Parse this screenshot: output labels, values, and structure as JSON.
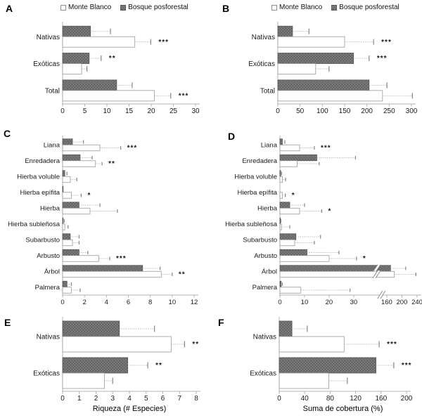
{
  "figure": {
    "legend": {
      "monte_blanco": "Monte Blanco",
      "bosque_posforestal": "Bosque posforestal"
    },
    "colors": {
      "monte_blanco_fill": "#ffffff",
      "monte_blanco_stroke": "#999999",
      "bosque_fill": "#6f6f6f",
      "bosque_stroke": "#565656",
      "error_line": "#c2c2c2",
      "error_cap": "#858585",
      "axis": "#b3b3b3",
      "text": "#1a1a1a",
      "significance": "#333333"
    }
  },
  "chart_data": [
    {
      "id": "A",
      "type": "bar",
      "orientation": "horizontal",
      "show_legend": true,
      "xlabel": "",
      "xlim": [
        0,
        30
      ],
      "x_ticks": [
        0,
        5,
        10,
        15,
        20,
        25,
        30
      ],
      "categories": [
        "Nativas",
        "Exóticas",
        "Total"
      ],
      "series": [
        {
          "name": "Monte Blanco",
          "key": "monte_blanco",
          "values": [
            16.3,
            4.3,
            20.7
          ],
          "errors": [
            3.6,
            1.2,
            3.7
          ]
        },
        {
          "name": "Bosque posforestal",
          "key": "bosque_posforestal",
          "values": [
            6.3,
            6.0,
            12.2
          ],
          "errors": [
            4.5,
            2.7,
            3.5
          ]
        }
      ],
      "significance": [
        {
          "category": "Nativas",
          "on": "monte_blanco",
          "label": "***"
        },
        {
          "category": "Exóticas",
          "on": "bosque_posforestal",
          "label": "**"
        },
        {
          "category": "Total",
          "on": "monte_blanco",
          "label": "***"
        }
      ]
    },
    {
      "id": "B",
      "type": "bar",
      "orientation": "horizontal",
      "show_legend": true,
      "xlabel": "",
      "xlim": [
        0,
        300
      ],
      "x_ticks": [
        0,
        50,
        100,
        150,
        200,
        250,
        300
      ],
      "categories": [
        "Nativas",
        "Exóticas",
        "Total"
      ],
      "series": [
        {
          "name": "Monte Blanco",
          "key": "monte_blanco",
          "values": [
            150,
            85,
            235
          ],
          "errors": [
            65,
            30,
            67
          ]
        },
        {
          "name": "Bosque posforestal",
          "key": "bosque_posforestal",
          "values": [
            33,
            170,
            205
          ],
          "errors": [
            37,
            35,
            40
          ]
        }
      ],
      "significance": [
        {
          "category": "Nativas",
          "on": "monte_blanco",
          "label": "***"
        },
        {
          "category": "Exóticas",
          "on": "bosque_posforestal",
          "label": "***"
        }
      ]
    },
    {
      "id": "C",
      "type": "bar",
      "orientation": "horizontal",
      "show_legend": false,
      "xlabel": "",
      "xlim": [
        0,
        12
      ],
      "x_ticks": [
        0,
        2,
        4,
        6,
        8,
        10,
        12
      ],
      "categories": [
        "Liana",
        "Enredadera",
        "Hierba voluble",
        "Hierba epífita",
        "Hierba",
        "Hierba subleñosa",
        "Subarbusto",
        "Arbusto",
        "Árbol",
        "Palmera"
      ],
      "series": [
        {
          "name": "Monte Blanco",
          "key": "monte_blanco",
          "values": [
            3.4,
            3.0,
            0.7,
            0.8,
            2.5,
            0.2,
            0.9,
            3.3,
            9.0,
            0.8
          ],
          "errors": [
            1.9,
            0.6,
            0.6,
            0.9,
            2.5,
            0.3,
            0.6,
            1.0,
            1.0,
            0.8
          ]
        },
        {
          "name": "Bosque posforestal",
          "key": "bosque_posforestal",
          "values": [
            0.9,
            1.6,
            0.2,
            0.05,
            1.5,
            0.05,
            0.7,
            1.5,
            7.3,
            0.4
          ],
          "errors": [
            1.0,
            1.1,
            0.2,
            0,
            1.9,
            0.1,
            0.8,
            0.8,
            1.6,
            0.4
          ]
        }
      ],
      "significance": [
        {
          "category": "Liana",
          "on": "monte_blanco",
          "label": "***"
        },
        {
          "category": "Enredadera",
          "on": "monte_blanco",
          "label": "**"
        },
        {
          "category": "Hierba epífita",
          "on": "monte_blanco",
          "label": "*"
        },
        {
          "category": "Arbusto",
          "on": "monte_blanco",
          "label": "***"
        },
        {
          "category": "Árbol",
          "on": "monte_blanco",
          "label": "**"
        }
      ]
    },
    {
      "id": "D",
      "type": "bar",
      "orientation": "horizontal",
      "show_legend": false,
      "xlabel": "",
      "xlim": [
        0,
        240
      ],
      "x_ticks": [
        0,
        10,
        20,
        30,
        160,
        200,
        240
      ],
      "axis_break": {
        "pre_max": 30,
        "post_min": 160,
        "post_max": 240
      },
      "categories": [
        "Liana",
        "Enredadera",
        "Hierba voluble",
        "Hierba epífita",
        "Hierba",
        "Hierba subleñosa",
        "Subarbusto",
        "Arbusto",
        "Árbol",
        "Palmera"
      ],
      "series": [
        {
          "name": "Monte Blanco",
          "key": "monte_blanco",
          "values": [
            8,
            7,
            1.0,
            1.0,
            8,
            0.6,
            6,
            20,
            180,
            8.5
          ],
          "errors": [
            6,
            9,
            1.3,
            1.2,
            9,
            3.4,
            8,
            21,
            57,
            20
          ]
        },
        {
          "name": "Bosque posforestal",
          "key": "bosque_posforestal",
          "values": [
            1,
            15,
            0.3,
            0.1,
            4,
            0.2,
            6.5,
            11,
            170,
            0.5
          ],
          "errors": [
            1,
            22,
            0.4,
            0,
            6,
            0.2,
            10,
            13,
            40,
            0.5
          ]
        }
      ],
      "significance": [
        {
          "category": "Liana",
          "on": "monte_blanco",
          "label": "***"
        },
        {
          "category": "Hierba epífita",
          "on": "monte_blanco",
          "label": "*"
        },
        {
          "category": "Hierba",
          "on": "monte_blanco",
          "label": "*"
        },
        {
          "category": "Arbusto",
          "on": "monte_blanco",
          "label": "*"
        }
      ]
    },
    {
      "id": "E",
      "type": "bar",
      "orientation": "horizontal",
      "show_legend": false,
      "xlabel": "Riqueza (# Especies)",
      "xlim": [
        0,
        8
      ],
      "x_ticks": [
        0,
        1,
        2,
        3,
        4,
        5,
        6,
        7,
        8
      ],
      "categories": [
        "Nativas",
        "Exóticas"
      ],
      "series": [
        {
          "name": "Monte Blanco",
          "key": "monte_blanco",
          "values": [
            6.5,
            2.5
          ],
          "errors": [
            0.8,
            0.5
          ]
        },
        {
          "name": "Bosque posforestal",
          "key": "bosque_posforestal",
          "values": [
            3.4,
            3.9
          ],
          "errors": [
            2.1,
            1.2
          ]
        }
      ],
      "significance": [
        {
          "category": "Nativas",
          "on": "monte_blanco",
          "label": "**"
        },
        {
          "category": "Exóticas",
          "on": "bosque_posforestal",
          "label": "**"
        }
      ]
    },
    {
      "id": "F",
      "type": "bar",
      "orientation": "horizontal",
      "show_legend": false,
      "xlabel": "Suma de cobertura (%)",
      "xlim": [
        0,
        200
      ],
      "x_ticks": [
        0,
        40,
        80,
        120,
        160,
        200
      ],
      "categories": [
        "Nativas",
        "Exóticas"
      ],
      "series": [
        {
          "name": "Monte Blanco",
          "key": "monte_blanco",
          "values": [
            102,
            78
          ],
          "errors": [
            55,
            29
          ]
        },
        {
          "name": "Bosque posforestal",
          "key": "bosque_posforestal",
          "values": [
            20,
            152
          ],
          "errors": [
            24,
            28
          ]
        }
      ],
      "significance": [
        {
          "category": "Nativas",
          "on": "monte_blanco",
          "label": "***"
        },
        {
          "category": "Exóticas",
          "on": "bosque_posforestal",
          "label": "***"
        }
      ]
    }
  ]
}
